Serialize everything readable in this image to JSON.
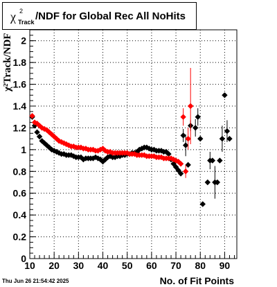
{
  "title": {
    "symbol": "χ",
    "superscript": "2",
    "subscript": "Track",
    "text": "/NDF for Global Rec All NoHits"
  },
  "footer": {
    "date": "Thu Jun 26 21:54:42 2025"
  },
  "chart_data": {
    "type": "scatter",
    "title": "χ²Track/NDF for Global Rec All NoHits",
    "xlabel": "No. of Fit Points",
    "ylabel": "χ²Track/NDF",
    "xlim": [
      10,
      95
    ],
    "ylim": [
      0,
      2.1
    ],
    "xticks": [
      10,
      20,
      30,
      40,
      50,
      60,
      70,
      80,
      90
    ],
    "yticks": [
      0,
      0.2,
      0.4,
      0.6,
      0.8,
      1,
      1.2,
      1.4,
      1.6,
      1.8,
      2
    ],
    "ytick_labels": [
      "0",
      "0.2",
      "0.4",
      "0.6",
      "0.8",
      "1",
      "1.2",
      "1.4",
      "1.6",
      "1.8",
      "2"
    ],
    "grid": true,
    "series": [
      {
        "color": "#000000",
        "points": [
          [
            11,
            1.3
          ],
          [
            12,
            1.22
          ],
          [
            13,
            1.16
          ],
          [
            14,
            1.12
          ],
          [
            15,
            1.08
          ],
          [
            16,
            1.06
          ],
          [
            17,
            1.04
          ],
          [
            18,
            1.02
          ],
          [
            19,
            1.0
          ],
          [
            20,
            0.99
          ],
          [
            21,
            0.98
          ],
          [
            22,
            0.97
          ],
          [
            23,
            0.96
          ],
          [
            24,
            0.96
          ],
          [
            25,
            0.95
          ],
          [
            26,
            0.95
          ],
          [
            27,
            0.95
          ],
          [
            28,
            0.94
          ],
          [
            29,
            0.93
          ],
          [
            30,
            0.93
          ],
          [
            31,
            0.93
          ],
          [
            32,
            0.91
          ],
          [
            33,
            0.92
          ],
          [
            34,
            0.92
          ],
          [
            35,
            0.92
          ],
          [
            36,
            0.92
          ],
          [
            37,
            0.93
          ],
          [
            38,
            0.92
          ],
          [
            39,
            0.91
          ],
          [
            40,
            0.89
          ],
          [
            41,
            0.91
          ],
          [
            42,
            0.93
          ],
          [
            43,
            0.94
          ],
          [
            44,
            0.93
          ],
          [
            45,
            0.93
          ],
          [
            46,
            0.94
          ],
          [
            47,
            0.94
          ],
          [
            48,
            0.95
          ],
          [
            49,
            0.95
          ],
          [
            50,
            0.96
          ],
          [
            51,
            0.96
          ],
          [
            52,
            0.97
          ],
          [
            53,
            0.97
          ],
          [
            54,
            0.98
          ],
          [
            55,
            1.0
          ],
          [
            56,
            1.01
          ],
          [
            57,
            1.02
          ],
          [
            58,
            1.02
          ],
          [
            59,
            1.01
          ],
          [
            60,
            1.0
          ],
          [
            61,
            1.0
          ],
          [
            62,
            0.99
          ],
          [
            63,
            0.99
          ],
          [
            64,
            0.99
          ],
          [
            65,
            0.98
          ],
          [
            66,
            0.98
          ],
          [
            67,
            0.96
          ],
          [
            68,
            0.91
          ],
          [
            69,
            0.87
          ],
          [
            70,
            0.84
          ],
          [
            71,
            0.81
          ],
          [
            72,
            0.78
          ],
          [
            73,
            1.13
          ],
          [
            74,
            1.04
          ],
          [
            75,
            0.86
          ],
          [
            76,
            1.22
          ],
          [
            78,
            1.2
          ],
          [
            79,
            1.3
          ],
          [
            80,
            1.1
          ],
          [
            81,
            0.5
          ],
          [
            83,
            0.7
          ],
          [
            84,
            0.9
          ],
          [
            85,
            0.9
          ],
          [
            86,
            0.7
          ],
          [
            87,
            0.7
          ],
          [
            88,
            0.9
          ],
          [
            89,
            1.1
          ],
          [
            90,
            1.5
          ],
          [
            91,
            1.17
          ],
          [
            92,
            1.1
          ]
        ],
        "errors": [
          [
            72,
            0.78,
            0.02
          ],
          [
            73,
            1.13,
            0.06
          ],
          [
            74,
            1.04,
            0.1
          ],
          [
            76,
            1.22,
            0.05
          ],
          [
            78,
            1.2,
            0.08
          ],
          [
            79,
            1.3,
            0.08
          ],
          [
            84,
            0.9,
            0.08
          ],
          [
            86,
            0.7,
            0.15
          ],
          [
            89,
            1.1,
            0.12
          ],
          [
            91,
            1.17,
            0.1
          ]
        ]
      },
      {
        "color": "#ff0000",
        "points": [
          [
            11,
            1.31
          ],
          [
            12,
            1.25
          ],
          [
            13,
            1.24
          ],
          [
            14,
            1.22
          ],
          [
            15,
            1.2
          ],
          [
            16,
            1.19
          ],
          [
            17,
            1.18
          ],
          [
            18,
            1.16
          ],
          [
            19,
            1.14
          ],
          [
            20,
            1.12
          ],
          [
            21,
            1.1
          ],
          [
            22,
            1.08
          ],
          [
            23,
            1.07
          ],
          [
            24,
            1.06
          ],
          [
            25,
            1.05
          ],
          [
            26,
            1.04
          ],
          [
            27,
            1.03
          ],
          [
            28,
            1.03
          ],
          [
            29,
            1.02
          ],
          [
            30,
            1.02
          ],
          [
            31,
            1.02
          ],
          [
            32,
            1.01
          ],
          [
            33,
            1.01
          ],
          [
            34,
            1.0
          ],
          [
            35,
            1.0
          ],
          [
            36,
            1.0
          ],
          [
            37,
            0.99
          ],
          [
            38,
            0.99
          ],
          [
            39,
            1.0
          ],
          [
            40,
            1.01
          ],
          [
            41,
            0.99
          ],
          [
            42,
            0.98
          ],
          [
            43,
            0.98
          ],
          [
            44,
            0.97
          ],
          [
            45,
            0.97
          ],
          [
            46,
            0.97
          ],
          [
            47,
            0.97
          ],
          [
            48,
            0.97
          ],
          [
            49,
            0.97
          ],
          [
            50,
            0.97
          ],
          [
            51,
            0.96
          ],
          [
            52,
            0.96
          ],
          [
            53,
            0.96
          ],
          [
            54,
            0.95
          ],
          [
            55,
            0.95
          ],
          [
            56,
            0.95
          ],
          [
            57,
            0.95
          ],
          [
            58,
            0.94
          ],
          [
            59,
            0.94
          ],
          [
            60,
            0.94
          ],
          [
            61,
            0.94
          ],
          [
            62,
            0.93
          ],
          [
            63,
            0.93
          ],
          [
            64,
            0.93
          ],
          [
            65,
            0.92
          ],
          [
            66,
            0.92
          ],
          [
            67,
            0.92
          ],
          [
            68,
            0.92
          ],
          [
            69,
            0.91
          ],
          [
            70,
            0.9
          ],
          [
            71,
            0.89
          ],
          [
            72,
            0.87
          ],
          [
            73,
            1.3
          ],
          [
            74,
            0.8
          ],
          [
            75,
            1.1
          ],
          [
            76,
            1.4
          ]
        ],
        "errors": [
          [
            73,
            1.3,
            0.08
          ],
          [
            74,
            0.8,
            0.06
          ],
          [
            75,
            1.1,
            0.1
          ],
          [
            76,
            1.4,
            0.35
          ]
        ]
      }
    ]
  }
}
